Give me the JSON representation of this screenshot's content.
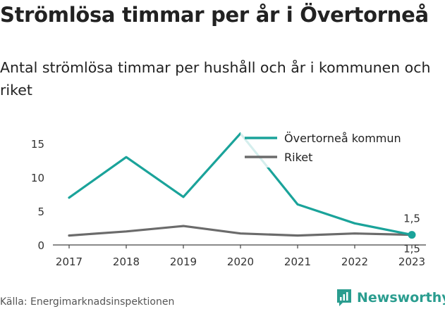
{
  "header": {
    "title": "Strömlösa timmar per år i Övertorneå",
    "subtitle": "Antal strömlösa timmar per hushåll och år i kommunen och riket"
  },
  "footer": {
    "source": "Källa: Energimarknadsinspektionen",
    "brand": "Newsworthy"
  },
  "chart_data": {
    "type": "line",
    "x": [
      "2017",
      "2018",
      "2019",
      "2020",
      "2021",
      "2022",
      "2023"
    ],
    "series": [
      {
        "name": "Övertorneå kommun",
        "color": "#1aa39a",
        "values": [
          7,
          13,
          7.1,
          16.5,
          6,
          3.2,
          1.5
        ]
      },
      {
        "name": "Riket",
        "color": "#6b6b6b",
        "values": [
          1.4,
          2,
          2.8,
          1.7,
          1.4,
          1.7,
          1.5
        ]
      }
    ],
    "end_labels": [
      "1,5",
      "1,5"
    ],
    "yticks": [
      "0",
      "5",
      "10",
      "15"
    ],
    "ylim": [
      0,
      17
    ],
    "legend": "top-right",
    "grid": false
  }
}
